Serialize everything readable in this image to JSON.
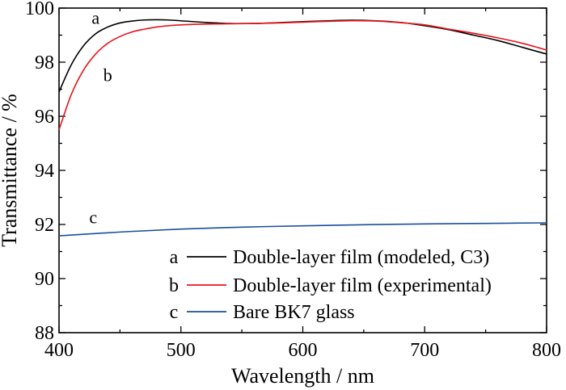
{
  "chart_data": {
    "type": "line",
    "xlabel": "Wavelength / nm",
    "ylabel": "Transmittance / %",
    "xlim": [
      400,
      800
    ],
    "ylim": [
      88,
      100
    ],
    "xticks": [
      400,
      500,
      600,
      700,
      800
    ],
    "yticks": [
      88,
      90,
      92,
      94,
      96,
      98,
      100
    ],
    "grid": false,
    "legend_position": "bottom-right",
    "series": [
      {
        "letter": "a",
        "name": "Double-layer film (modeled, C3)",
        "color": "#000000",
        "x": [
          400,
          410,
          420,
          430,
          440,
          450,
          460,
          470,
          480,
          490,
          500,
          520,
          540,
          560,
          580,
          600,
          620,
          640,
          660,
          680,
          700,
          720,
          740,
          760,
          780,
          800
        ],
        "y": [
          96.9,
          97.9,
          98.6,
          99.05,
          99.3,
          99.45,
          99.52,
          99.56,
          99.57,
          99.56,
          99.53,
          99.47,
          99.43,
          99.43,
          99.46,
          99.5,
          99.53,
          99.55,
          99.53,
          99.47,
          99.35,
          99.2,
          99.0,
          98.8,
          98.55,
          98.3
        ]
      },
      {
        "letter": "b",
        "name": "Double-layer film (experimental)",
        "color": "#e8141c",
        "x": [
          400,
          410,
          420,
          430,
          440,
          450,
          460,
          470,
          480,
          490,
          500,
          520,
          540,
          560,
          580,
          600,
          620,
          640,
          660,
          680,
          700,
          720,
          740,
          760,
          780,
          800
        ],
        "y": [
          95.5,
          96.8,
          97.7,
          98.3,
          98.7,
          98.95,
          99.12,
          99.22,
          99.3,
          99.35,
          99.38,
          99.41,
          99.42,
          99.43,
          99.45,
          99.48,
          99.51,
          99.53,
          99.52,
          99.46,
          99.38,
          99.22,
          99.07,
          98.9,
          98.7,
          98.45
        ]
      },
      {
        "letter": "c",
        "name": "Bare BK7 glass",
        "color": "#1c4f9c",
        "x": [
          400,
          450,
          500,
          550,
          600,
          650,
          700,
          750,
          800
        ],
        "y": [
          91.58,
          91.72,
          91.83,
          91.9,
          91.95,
          91.99,
          92.02,
          92.04,
          92.06
        ]
      }
    ],
    "curve_labels": [
      {
        "text": "a",
        "x": 430,
        "y": 99.42
      },
      {
        "text": "b",
        "x": 440,
        "y": 97.3
      },
      {
        "text": "c",
        "x": 428,
        "y": 92.05
      }
    ]
  }
}
